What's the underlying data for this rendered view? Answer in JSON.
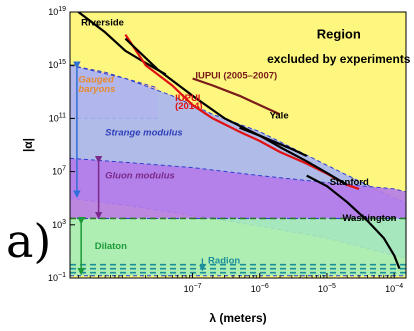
{
  "margin_glyph": "a)",
  "chart_data": {
    "type": "area",
    "title": "",
    "xlabel": "λ (meters)",
    "ylabel": "|α|",
    "x_scale": "log",
    "y_scale": "log",
    "xlim": [
      1.5e-09,
      0.00015
    ],
    "ylim": [
      0.1,
      1e+19
    ],
    "x_ticks": [
      {
        "value": 1e-07,
        "label": "10",
        "exp": "−7"
      },
      {
        "value": 1e-06,
        "label": "10",
        "exp": "−6"
      },
      {
        "value": 1e-05,
        "label": "10",
        "exp": "−5"
      },
      {
        "value": 0.0001,
        "label": "10",
        "exp": "−4"
      }
    ],
    "y_ticks": [
      {
        "value": 0.1,
        "label": "10",
        "exp": "−1"
      },
      {
        "value": 1000.0,
        "label": "10",
        "exp": "3"
      },
      {
        "value": 10000000.0,
        "label": "10",
        "exp": "7"
      },
      {
        "value": 100000000000.0,
        "label": "10",
        "exp": "11"
      },
      {
        "value": 1000000000000000.0,
        "label": "10",
        "exp": "15"
      },
      {
        "value": 1e+19,
        "label": "10",
        "exp": "19"
      }
    ],
    "excluded_region_label": {
      "line1": "Region",
      "line2": "excluded by experiments",
      "color": "#fef77f"
    },
    "bands": [
      {
        "name": "Gauged baryons",
        "color": "#f9c9a2",
        "upper": [
          [
            1.5e-09,
            1000000000000000.0
          ],
          [
            5e-09,
            300000000000000.0
          ],
          [
            1e-08,
            100000000000000.0
          ],
          [
            3e-08,
            20000000000000.0
          ]
        ],
        "lower": [
          [
            1.5e-09,
            100000000000.0
          ],
          [
            3e-08,
            100000000000.0
          ]
        ]
      },
      {
        "name": "Strange modulus",
        "color": "#a8b4f4",
        "upper": [
          [
            1.5e-09,
            1000000000000000.0
          ],
          [
            1e-08,
            100000000000000.0
          ],
          [
            5e-08,
            5000000000000.0
          ],
          [
            2e-07,
            200000000000.0
          ],
          [
            1e-06,
            10000000000.0
          ],
          [
            1e-05,
            30000000.0
          ],
          [
            0.0001,
            100000.0
          ],
          [
            0.00015,
            50000.0
          ]
        ],
        "lower": [
          [
            1.5e-09,
            100000.0
          ],
          [
            1e-08,
            30000.0
          ],
          [
            1e-07,
            5000.0
          ],
          [
            1e-06,
            800.0
          ],
          [
            1e-05,
            100.0
          ],
          [
            0.0001,
            5
          ],
          [
            0.00015,
            3
          ]
        ]
      },
      {
        "name": "Gluon modulus",
        "color": "#b57bea",
        "upper": [
          [
            1.5e-09,
            100000000.0
          ],
          [
            1e-08,
            50000000.0
          ],
          [
            1e-07,
            20000000.0
          ],
          [
            1e-06,
            5000000.0
          ],
          [
            1e-05,
            1500000.0
          ],
          [
            0.0001,
            500000.0
          ],
          [
            0.00015,
            300000.0
          ]
        ],
        "lower": [
          [
            1.5e-09,
            3000.0
          ],
          [
            0.00015,
            3000.0
          ]
        ]
      },
      {
        "name": "Dilaton",
        "color": "#a6ecb8",
        "upper": [
          [
            1.5e-09,
            3000.0
          ],
          [
            0.00015,
            3000.0
          ]
        ],
        "lower": [
          [
            1.5e-09,
            0.15
          ],
          [
            0.00015,
            0.15
          ]
        ]
      }
    ],
    "dashed_lines": [
      {
        "color": "#2a7a2a",
        "y": 3000.0
      },
      {
        "color": "#1b8f9a",
        "y": 1.0
      },
      {
        "color": "#1b8f9a",
        "y": 0.5
      },
      {
        "color": "#1b8f9a",
        "y": 0.25
      }
    ],
    "series": [
      {
        "name": "Riverside",
        "color": "#000000",
        "points": [
          [
            2e-09,
            1e+19
          ],
          [
            5e-09,
            3e+17
          ],
          [
            1e-08,
            1.2e+16
          ],
          [
            2e-08,
            1500000000000000.0
          ],
          [
            4e-08,
            200000000000000.0
          ]
        ]
      },
      {
        "name": "IUPUI (2005–2007)",
        "color": "#7a1a1a",
        "points": [
          [
            1e-07,
            100000000000000.0
          ],
          [
            2e-07,
            30000000000000.0
          ],
          [
            5e-07,
            5000000000000.0
          ],
          [
            1e-06,
            1000000000000.0
          ],
          [
            2e-06,
            200000000000.0
          ]
        ]
      },
      {
        "name": "IUPUI (2014)",
        "color": "#e01010",
        "points": [
          [
            1e-08,
            2e+17
          ],
          [
            2e-08,
            1000000000000000.0
          ],
          [
            5e-08,
            30000000000000.0
          ],
          [
            1e-07,
            1000000000000.0
          ],
          [
            2e-07,
            100000000000.0
          ],
          [
            5e-07,
            10000000000.0
          ],
          [
            1e-06,
            2000000000.0
          ],
          [
            2e-06,
            300000000.0
          ],
          [
            5e-06,
            40000000.0
          ],
          [
            1e-05,
            7000000.0
          ],
          [
            2e-05,
            1000000.0
          ],
          [
            3e-05,
            500000.0
          ]
        ]
      },
      {
        "name": "Yale",
        "color": "#000000",
        "points": [
          [
            1e-08,
            1e+17
          ],
          [
            3e-08,
            500000000000000.0
          ],
          [
            1e-07,
            5000000000000.0
          ],
          [
            3e-07,
            100000000000.0
          ],
          [
            1e-06,
            5000000000.0
          ],
          [
            3e-06,
            500000000.0
          ],
          [
            5e-06,
            150000000.0
          ]
        ]
      },
      {
        "name": "Stanford",
        "color": "#000000",
        "points": [
          [
            5e-07,
            20000000000.0
          ],
          [
            1e-06,
            5000000000.0
          ],
          [
            2e-06,
            700000000.0
          ],
          [
            5e-06,
            60000000.0
          ],
          [
            1e-05,
            8000000.0
          ],
          [
            2e-05,
            1000000.0
          ]
        ]
      },
      {
        "name": "Washington",
        "color": "#000000",
        "points": [
          [
            5e-06,
            5000000.0
          ],
          [
            1e-05,
            800000.0
          ],
          [
            2e-05,
            50000.0
          ],
          [
            4e-05,
            2000.0
          ],
          [
            7e-05,
            100.0
          ],
          [
            0.0001,
            5
          ],
          [
            0.00012,
            0.5
          ]
        ]
      }
    ],
    "labels": [
      {
        "text": "Riverside",
        "x": 2.2e-09,
        "y": 1e+18,
        "color": "#000000",
        "italic": false
      },
      {
        "text": "IUPUI (2005–2007)",
        "x": 1.1e-07,
        "y": 100000000000000.0,
        "color": "#7a1a1a",
        "italic": false
      },
      {
        "text": "IUPUI",
        "x": 5.5e-08,
        "y": 2000000000000.0,
        "color": "#e01010",
        "italic": false
      },
      {
        "text": "(2014)",
        "x": 5.5e-08,
        "y": 500000000000.0,
        "color": "#e01010",
        "italic": false
      },
      {
        "text": "Yale",
        "x": 1.4e-06,
        "y": 100000000000.0,
        "color": "#000000",
        "italic": false
      },
      {
        "text": "Gauged",
        "x": 2e-09,
        "y": 50000000000000.0,
        "color": "#e88a2e",
        "italic": true
      },
      {
        "text": "baryons",
        "x": 2e-09,
        "y": 10000000000000.0,
        "color": "#e88a2e",
        "italic": true
      },
      {
        "text": "Strange modulus",
        "x": 5e-09,
        "y": 5000000000.0,
        "color": "#2f3fb8",
        "italic": true
      },
      {
        "text": "Gluon modulus",
        "x": 5e-09,
        "y": 3000000.0,
        "color": "#7a2a8a",
        "italic": true
      },
      {
        "text": "Stanford",
        "x": 1.1e-05,
        "y": 1000000.0,
        "color": "#000000",
        "italic": false
      },
      {
        "text": "Washington",
        "x": 1.7e-05,
        "y": 2000.0,
        "color": "#000000",
        "italic": false
      },
      {
        "text": "Dilaton",
        "x": 3.5e-09,
        "y": 15,
        "color": "#1d9a3a",
        "italic": false
      },
      {
        "text": "Radion",
        "x": 1.7e-07,
        "y": 1.2,
        "color": "#1b8f9a",
        "italic": false
      }
    ]
  }
}
